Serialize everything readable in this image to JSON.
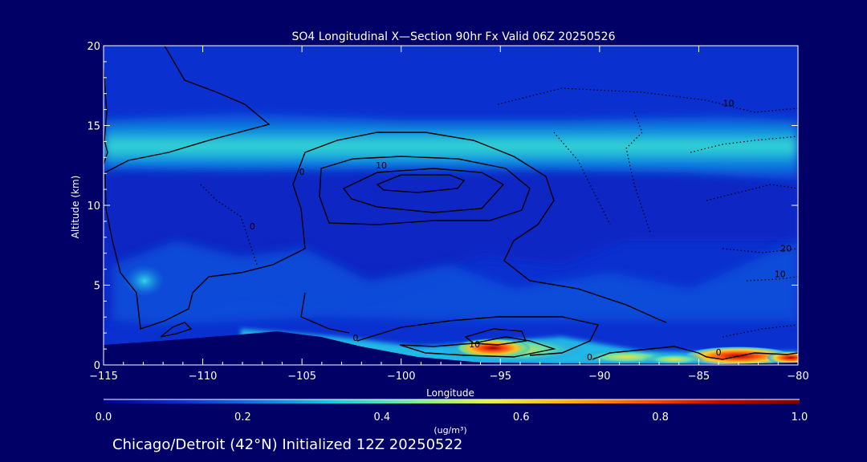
{
  "chart_data": {
    "type": "heatmap",
    "title": "SO4 Longitudinal X—Section 90hr  Fx Valid 06Z 20250526",
    "xlabel": "Longitude",
    "ylabel": "Altitude (km)",
    "xlim": [
      -115,
      -80
    ],
    "ylim": [
      0,
      20
    ],
    "x_ticks": [
      {
        "value": -115,
        "label": "−115"
      },
      {
        "value": -110,
        "label": "−110"
      },
      {
        "value": -105,
        "label": "−105"
      },
      {
        "value": -100,
        "label": "−100"
      },
      {
        "value": -95,
        "label": "−95"
      },
      {
        "value": -90,
        "label": "−90"
      },
      {
        "value": -85,
        "label": "−85"
      },
      {
        "value": -80,
        "label": "−80"
      }
    ],
    "y_ticks": [
      {
        "value": 0,
        "label": "0"
      },
      {
        "value": 5,
        "label": "5"
      },
      {
        "value": 10,
        "label": "10"
      },
      {
        "value": 15,
        "label": "15"
      },
      {
        "value": 20,
        "label": "20"
      }
    ],
    "colorbar": {
      "min": 0.0,
      "max": 1.0,
      "ticks": [
        {
          "value": 0.0,
          "label": "0.0"
        },
        {
          "value": 0.2,
          "label": "0.2"
        },
        {
          "value": 0.4,
          "label": "0.4"
        },
        {
          "value": 0.6,
          "label": "0.6"
        },
        {
          "value": 0.8,
          "label": "0.8"
        },
        {
          "value": 1.0,
          "label": "1.0"
        }
      ],
      "unit_label": "(ug/m³)",
      "colors": [
        "#00008f",
        "#0a2fd2",
        "#0d7ae6",
        "#12d0e0",
        "#6ef0a0",
        "#e8f03a",
        "#ffb000",
        "#ff5010",
        "#c80000",
        "#800000"
      ]
    },
    "features": [
      {
        "name": "upper-tropospheric band",
        "lon_range": [
          -115,
          -80
        ],
        "alt_km": 13.5,
        "so4": 0.45
      },
      {
        "name": "boundary-layer plume",
        "lon_range": [
          -98,
          -90
        ],
        "alt_km": 0.8,
        "so4": 0.9
      },
      {
        "name": "boundary-layer plume east",
        "lon_range": [
          -87,
          -80
        ],
        "alt_km": 0.5,
        "so4": 0.9
      }
    ],
    "contour_labels": [
      {
        "text": "10",
        "lon": -101,
        "alt": 12.3
      },
      {
        "text": "0",
        "lon": -105,
        "alt": 11.9
      },
      {
        "text": "0",
        "lon": -107.5,
        "alt": 8.5
      },
      {
        "text": "0",
        "lon": -102.3,
        "alt": 1.5
      },
      {
        "text": "10",
        "lon": -96.3,
        "alt": 1.1
      },
      {
        "text": "0",
        "lon": -90.5,
        "alt": 0.3
      },
      {
        "text": "0",
        "lon": -84,
        "alt": 0.6
      },
      {
        "text": "10",
        "lon": -83.5,
        "alt": 16.2
      },
      {
        "text": "20",
        "lon": -80.6,
        "alt": 7.1
      },
      {
        "text": "10",
        "lon": -80.9,
        "alt": 5.5
      }
    ]
  },
  "footer_text": "Chicago/Detroit (42°N) Initialized 12Z 20250522"
}
